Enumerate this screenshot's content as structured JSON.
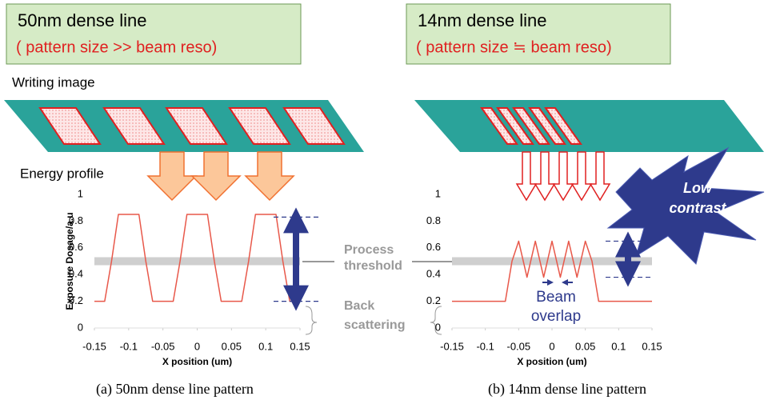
{
  "chart_data": [
    {
      "type": "line",
      "title": "50nm dense line",
      "subtitle": "( pattern size >> beam reso)",
      "caption": "(a) 50nm dense line pattern",
      "writing_label": "Writing image",
      "energy_label": "Energy profile",
      "threshold_label": [
        "Process",
        "threshold"
      ],
      "scatter_label": [
        "Back",
        "scattering"
      ],
      "xlabel": "X position (um)",
      "ylabel": "Exposure Dosage/a.u",
      "x": [
        -0.15,
        -0.135,
        -0.125,
        -0.115,
        -0.085,
        -0.075,
        -0.065,
        -0.035,
        -0.025,
        -0.015,
        0.015,
        0.025,
        0.035,
        0.065,
        0.075,
        0.085,
        0.115,
        0.125,
        0.135,
        0.15
      ],
      "series": [
        {
          "color": "#e8584a",
          "values": [
            0.2,
            0.2,
            0.5,
            0.85,
            0.85,
            0.5,
            0.2,
            0.2,
            0.5,
            0.85,
            0.85,
            0.5,
            0.2,
            0.2,
            0.5,
            0.85,
            0.85,
            0.5,
            0.2,
            0.2
          ]
        }
      ],
      "threshold": 0.5,
      "contrast_range": [
        0.2,
        0.83
      ],
      "xlim": [
        -0.15,
        0.15
      ],
      "xticks": [
        -0.15,
        -0.1,
        -0.05,
        0,
        0.05,
        0.1,
        0.15
      ],
      "ylim": [
        0,
        1
      ],
      "yticks": [
        0,
        0.2,
        0.4,
        0.6,
        0.8,
        1
      ]
    },
    {
      "type": "line",
      "title": "14nm dense line",
      "subtitle": "( pattern size ≒ beam reso)",
      "caption": "(b) 14nm dense line pattern",
      "contrast_note": [
        "Low",
        "contrast"
      ],
      "overlap_label": [
        "Beam",
        "overlap"
      ],
      "xlabel": "X position (um)",
      "x": [
        -0.15,
        -0.07,
        -0.06,
        -0.05,
        -0.0375,
        -0.025,
        -0.0125,
        0,
        0.0125,
        0.025,
        0.0375,
        0.05,
        0.06,
        0.07,
        0.15
      ],
      "series": [
        {
          "color": "#e8584a",
          "values": [
            0.2,
            0.2,
            0.5,
            0.65,
            0.38,
            0.65,
            0.38,
            0.65,
            0.38,
            0.65,
            0.38,
            0.65,
            0.5,
            0.2,
            0.2
          ]
        }
      ],
      "threshold": 0.5,
      "contrast_range": [
        0.38,
        0.65
      ],
      "xlim": [
        -0.15,
        0.15
      ],
      "xticks": [
        -0.15,
        -0.1,
        -0.05,
        0,
        0.05,
        0.1,
        0.15
      ],
      "ylim": [
        0,
        1
      ],
      "yticks": [
        0,
        0.2,
        0.4,
        0.6,
        0.8,
        1
      ]
    }
  ]
}
